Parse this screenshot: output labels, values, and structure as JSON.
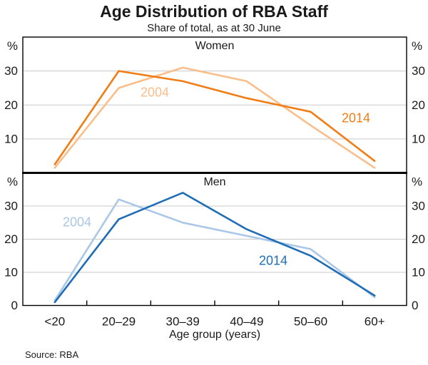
{
  "header": {
    "title": "Age Distribution of RBA Staff",
    "subtitle": "Share of total, as at 30 June"
  },
  "footer": {
    "xlabel": "Age group (years)",
    "source": "Source: RBA"
  },
  "axes": {
    "percent_label": "%",
    "zero_label": "0",
    "y_ticks": [
      10,
      20,
      30
    ],
    "grid": true,
    "y_axis_sides": "both"
  },
  "colors": {
    "dark_orange": "#F07D15",
    "light_orange": "#F9BE8A",
    "dark_blue": "#1E6DB6",
    "light_blue": "#AAC7E8",
    "gridline": "#C9C9C9",
    "frame": "#000000",
    "text": "#1a1a1a"
  },
  "chart_data": [
    {
      "type": "line",
      "title": "Women",
      "categories": [
        "<20",
        "20–29",
        "30–39",
        "40–49",
        "50–60",
        "60+"
      ],
      "ylim": [
        0,
        40
      ],
      "ylabel": "%",
      "legend_position": "inline-labels",
      "series": [
        {
          "name": "2004",
          "color_key": "light_orange",
          "values": [
            1.5,
            25,
            31,
            27,
            14,
            1.5
          ]
        },
        {
          "name": "2014",
          "color_key": "dark_orange",
          "values": [
            2.5,
            30,
            27,
            22,
            18,
            3.5
          ]
        }
      ]
    },
    {
      "type": "line",
      "title": "Men",
      "categories": [
        "<20",
        "20–29",
        "30–39",
        "40–49",
        "50–60",
        "60+"
      ],
      "ylim": [
        0,
        40
      ],
      "ylabel": "%",
      "legend_position": "inline-labels",
      "series": [
        {
          "name": "2004",
          "color_key": "light_blue",
          "values": [
            1.5,
            32,
            25,
            21,
            17,
            2.5
          ]
        },
        {
          "name": "2014",
          "color_key": "dark_blue",
          "values": [
            1,
            26,
            34,
            23,
            15,
            3
          ]
        }
      ]
    }
  ]
}
